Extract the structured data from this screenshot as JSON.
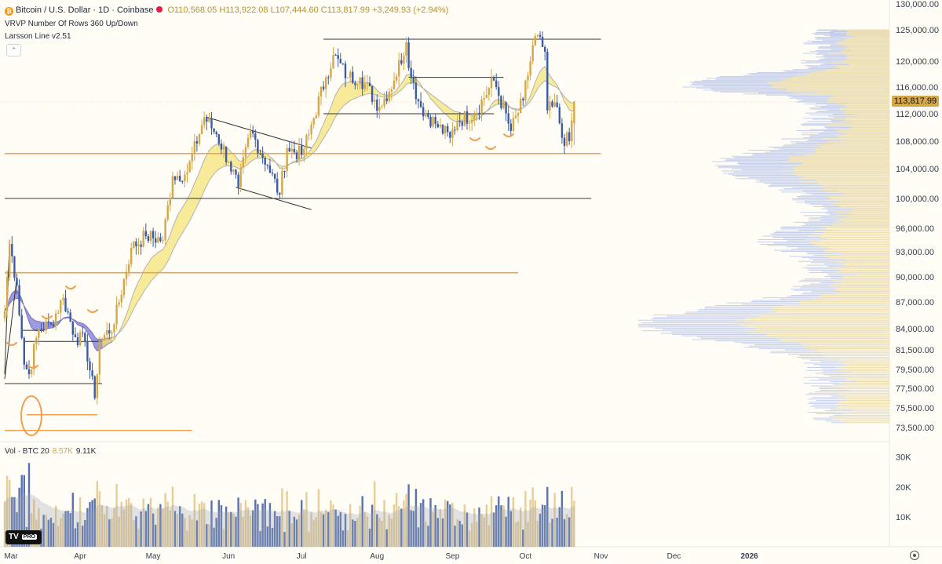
{
  "header": {
    "symbol_line": "Bitcoin / U.S. Dollar · 1D · Coinbase",
    "open": "O110,568.05",
    "high": "H113,922.08",
    "low": "L107,444.60",
    "close": "C113,817.99",
    "change": "+3,249.93 (+2.94%)",
    "indicator_1": "VRVP Number Of Rows 360 Up/Down",
    "indicator_2": "Larsson Line v2.51",
    "collapse_glyph": "⌃"
  },
  "price_tag": "113,817.99",
  "volume_label": {
    "name": "Vol · BTC 20",
    "v1": "8.57K",
    "v2": "9.11K"
  },
  "logo": {
    "text": "TV",
    "badge": "PRO"
  },
  "colors": {
    "up": "#d4a848",
    "down": "#3b5ba5",
    "orange": "#f0a050",
    "trend": "#333333",
    "ribbon_yellow": "#f5e67a",
    "ribbon_blue": "#7b78d8",
    "vp_blue": "#b8c6ea",
    "vp_yellow": "#f5e3a8"
  },
  "chart_data": {
    "type": "candlestick",
    "title": "Bitcoin / U.S. Dollar · 1D · Coinbase",
    "x_ticks": [
      "Mar",
      "Apr",
      "May",
      "Jun",
      "Jul",
      "Aug",
      "Sep",
      "Oct",
      "Nov",
      "Dec",
      "2026"
    ],
    "y_ticks": [
      "125,000.00",
      "120,000.00",
      "116,000.00",
      "112,000.00",
      "108,000.00",
      "104,000.00",
      "100,000.00",
      "96,000.00",
      "93,000.00",
      "90,000.00",
      "87,000.00",
      "84,000.00",
      "81,500.00",
      "79,500.00",
      "77,500.00",
      "75,500.00",
      "73,500.00"
    ],
    "y_tick_values": [
      125000,
      120000,
      116000,
      112000,
      108000,
      104000,
      100000,
      96000,
      93000,
      90000,
      87000,
      84000,
      81500,
      79500,
      77500,
      75500,
      73500
    ],
    "top_partial_tick": "130,000.00",
    "vol_ticks": [
      "30K",
      "20K",
      "10K"
    ],
    "vol_tick_values": [
      30000,
      20000,
      10000
    ],
    "close_keypoints": [
      [
        "2025-03-01",
        86000
      ],
      [
        "2025-03-03",
        94000
      ],
      [
        "2025-03-06",
        89000
      ],
      [
        "2025-03-09",
        80000
      ],
      [
        "2025-03-11",
        79000
      ],
      [
        "2025-03-15",
        84000
      ],
      [
        "2025-03-20",
        84500
      ],
      [
        "2025-03-25",
        87500
      ],
      [
        "2025-03-30",
        83000
      ],
      [
        "2025-04-03",
        82500
      ],
      [
        "2025-04-07",
        76500
      ],
      [
        "2025-04-09",
        82500
      ],
      [
        "2025-04-15",
        84500
      ],
      [
        "2025-04-22",
        93500
      ],
      [
        "2025-04-28",
        95000
      ],
      [
        "2025-05-05",
        94500
      ],
      [
        "2025-05-09",
        103000
      ],
      [
        "2025-05-15",
        103500
      ],
      [
        "2025-05-22",
        111500
      ],
      [
        "2025-05-27",
        109000
      ],
      [
        "2025-06-01",
        105000
      ],
      [
        "2025-06-05",
        101500
      ],
      [
        "2025-06-10",
        109500
      ],
      [
        "2025-06-17",
        104500
      ],
      [
        "2025-06-22",
        100500
      ],
      [
        "2025-06-25",
        107000
      ],
      [
        "2025-07-01",
        106000
      ],
      [
        "2025-07-04",
        109000
      ],
      [
        "2025-07-11",
        117500
      ],
      [
        "2025-07-14",
        121000
      ],
      [
        "2025-07-20",
        117500
      ],
      [
        "2025-07-25",
        117500
      ],
      [
        "2025-08-02",
        113000
      ],
      [
        "2025-08-08",
        117000
      ],
      [
        "2025-08-13",
        123000
      ],
      [
        "2025-08-15",
        117500
      ],
      [
        "2025-08-19",
        113000
      ],
      [
        "2025-08-25",
        110500
      ],
      [
        "2025-08-31",
        108500
      ],
      [
        "2025-09-03",
        111000
      ],
      [
        "2025-09-10",
        112000
      ],
      [
        "2025-09-18",
        117000
      ],
      [
        "2025-09-25",
        109500
      ],
      [
        "2025-09-30",
        114000
      ],
      [
        "2025-10-05",
        124000
      ],
      [
        "2025-10-09",
        121500
      ],
      [
        "2025-10-10",
        112500
      ],
      [
        "2025-10-14",
        113000
      ],
      [
        "2025-10-16",
        108500
      ],
      [
        "2025-10-19",
        108000
      ],
      [
        "2025-10-21",
        113818
      ]
    ],
    "last_candle": {
      "date": "2025-10-21",
      "open": 110568.05,
      "high": 113922.08,
      "low": 107444.6,
      "close": 113817.99
    },
    "horizontal_levels": [
      {
        "price": 123500,
        "from": "2025-07-10",
        "to": "2025-11-01",
        "color": "trend"
      },
      {
        "price": 117500,
        "from": "2025-08-14",
        "to": "2025-09-22",
        "color": "trend"
      },
      {
        "price": 112000,
        "from": "2025-07-10",
        "to": "2025-09-18",
        "color": "trend"
      },
      {
        "price": 106200,
        "from": "2025-03-01",
        "to": "2025-11-01",
        "color": "orange"
      },
      {
        "price": 100000,
        "from": "2025-03-01",
        "to": "2025-10-28",
        "color": "trend"
      },
      {
        "price": 90500,
        "from": "2025-03-01",
        "to": "2025-09-28",
        "color": "orange"
      },
      {
        "price": 82500,
        "from": "2025-03-09",
        "to": "2025-04-10",
        "color": "trend"
      },
      {
        "price": 83800,
        "from": "2025-03-08",
        "to": "2025-03-17",
        "color": "trend"
      },
      {
        "price": 78000,
        "from": "2025-03-01",
        "to": "2025-04-10",
        "color": "trend"
      },
      {
        "price": 74800,
        "from": "2025-03-10",
        "to": "2025-04-08",
        "color": "orange"
      },
      {
        "price": 73200,
        "from": "2025-03-01",
        "to": "2025-05-17",
        "color": "orange"
      }
    ],
    "trend_lines": [
      [
        [
          "2025-05-23",
          111500
        ],
        [
          "2025-07-05",
          107000
        ]
      ],
      [
        [
          "2025-06-04",
          101500
        ],
        [
          "2025-07-05",
          98500
        ]
      ],
      [
        [
          "2025-03-01",
          78500
        ],
        [
          "2025-03-06",
          90000
        ]
      ],
      [
        [
          "2025-03-01",
          79000
        ],
        [
          "2025-03-03",
          94500
        ]
      ]
    ],
    "volume_profile_poc": 84500,
    "volume_profile_range": [
      74000,
      126000
    ],
    "vwap_ribbon_range": [
      "2025-04-10",
      "2025-10-21"
    ],
    "blue_ribbon_range": [
      "2025-03-01",
      "2025-04-14"
    ]
  }
}
